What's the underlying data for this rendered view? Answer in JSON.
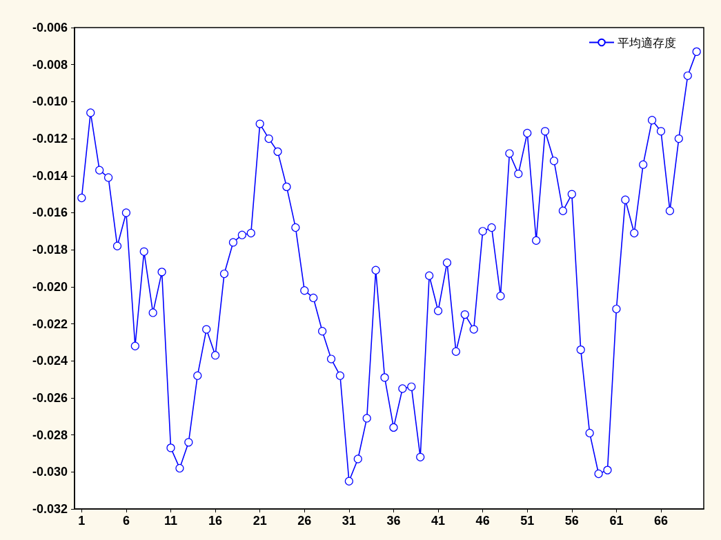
{
  "chart_data": {
    "type": "line",
    "x": [
      1,
      2,
      3,
      4,
      5,
      6,
      7,
      8,
      9,
      10,
      11,
      12,
      13,
      14,
      15,
      16,
      17,
      18,
      19,
      20,
      21,
      22,
      23,
      24,
      25,
      26,
      27,
      28,
      29,
      30,
      31,
      32,
      33,
      34,
      35,
      36,
      37,
      38,
      39,
      40,
      41,
      42,
      43,
      44,
      45,
      46,
      47,
      48,
      49,
      50,
      51,
      52,
      53,
      54,
      55,
      56,
      57,
      58,
      59,
      60,
      61,
      62,
      63,
      64,
      65,
      66,
      67,
      68,
      69,
      70
    ],
    "xlim": [
      0.2,
      70.8
    ],
    "xticks": [
      1,
      6,
      11,
      16,
      21,
      26,
      31,
      36,
      41,
      46,
      51,
      56,
      61,
      66
    ],
    "series": [
      {
        "name": "平均適存度",
        "color": "#0000ff",
        "values": [
          -0.0152,
          -0.0106,
          -0.0137,
          -0.0141,
          -0.0178,
          -0.016,
          -0.0232,
          -0.0181,
          -0.0214,
          -0.0192,
          -0.0287,
          -0.0298,
          -0.0284,
          -0.0248,
          -0.0223,
          -0.0237,
          -0.0193,
          -0.0176,
          -0.0172,
          -0.0171,
          -0.0112,
          -0.012,
          -0.0127,
          -0.0146,
          -0.0168,
          -0.0202,
          -0.0206,
          -0.0224,
          -0.0239,
          -0.0248,
          -0.0305,
          -0.0293,
          -0.0271,
          -0.0191,
          -0.0249,
          -0.0276,
          -0.0255,
          -0.0254,
          -0.0292,
          -0.0194,
          -0.0213,
          -0.0187,
          -0.0235,
          -0.0215,
          -0.0223,
          -0.017,
          -0.0168,
          -0.0205,
          -0.0128,
          -0.0139,
          -0.0117,
          -0.0175,
          -0.0116,
          -0.0132,
          -0.0159,
          -0.015,
          -0.0234,
          -0.0279,
          -0.0301,
          -0.0299,
          -0.0212,
          -0.0153,
          -0.0171,
          -0.0134,
          -0.011,
          -0.0116,
          -0.0159,
          -0.012,
          -0.0086,
          -0.0073
        ]
      }
    ],
    "ylim": [
      -0.032,
      -0.006
    ],
    "yticks": [
      {
        "value": -0.032,
        "label": "-0.032"
      },
      {
        "value": -0.03,
        "label": "-0.030"
      },
      {
        "value": -0.028,
        "label": "-0.028"
      },
      {
        "value": -0.026,
        "label": "-0.026"
      },
      {
        "value": -0.024,
        "label": "-0.024"
      },
      {
        "value": -0.022,
        "label": "-0.022"
      },
      {
        "value": -0.02,
        "label": "-0.020"
      },
      {
        "value": -0.018,
        "label": "-0.018"
      },
      {
        "value": -0.016,
        "label": "-0.016"
      },
      {
        "value": -0.014,
        "label": "-0.014"
      },
      {
        "value": -0.012,
        "label": "-0.012"
      },
      {
        "value": -0.01,
        "label": "-0.010"
      },
      {
        "value": -0.008,
        "label": "-0.008"
      },
      {
        "value": -0.006,
        "label": "-0.006"
      }
    ],
    "grid": false,
    "legend": "top right",
    "marker": "circle",
    "line_style": "solid"
  }
}
